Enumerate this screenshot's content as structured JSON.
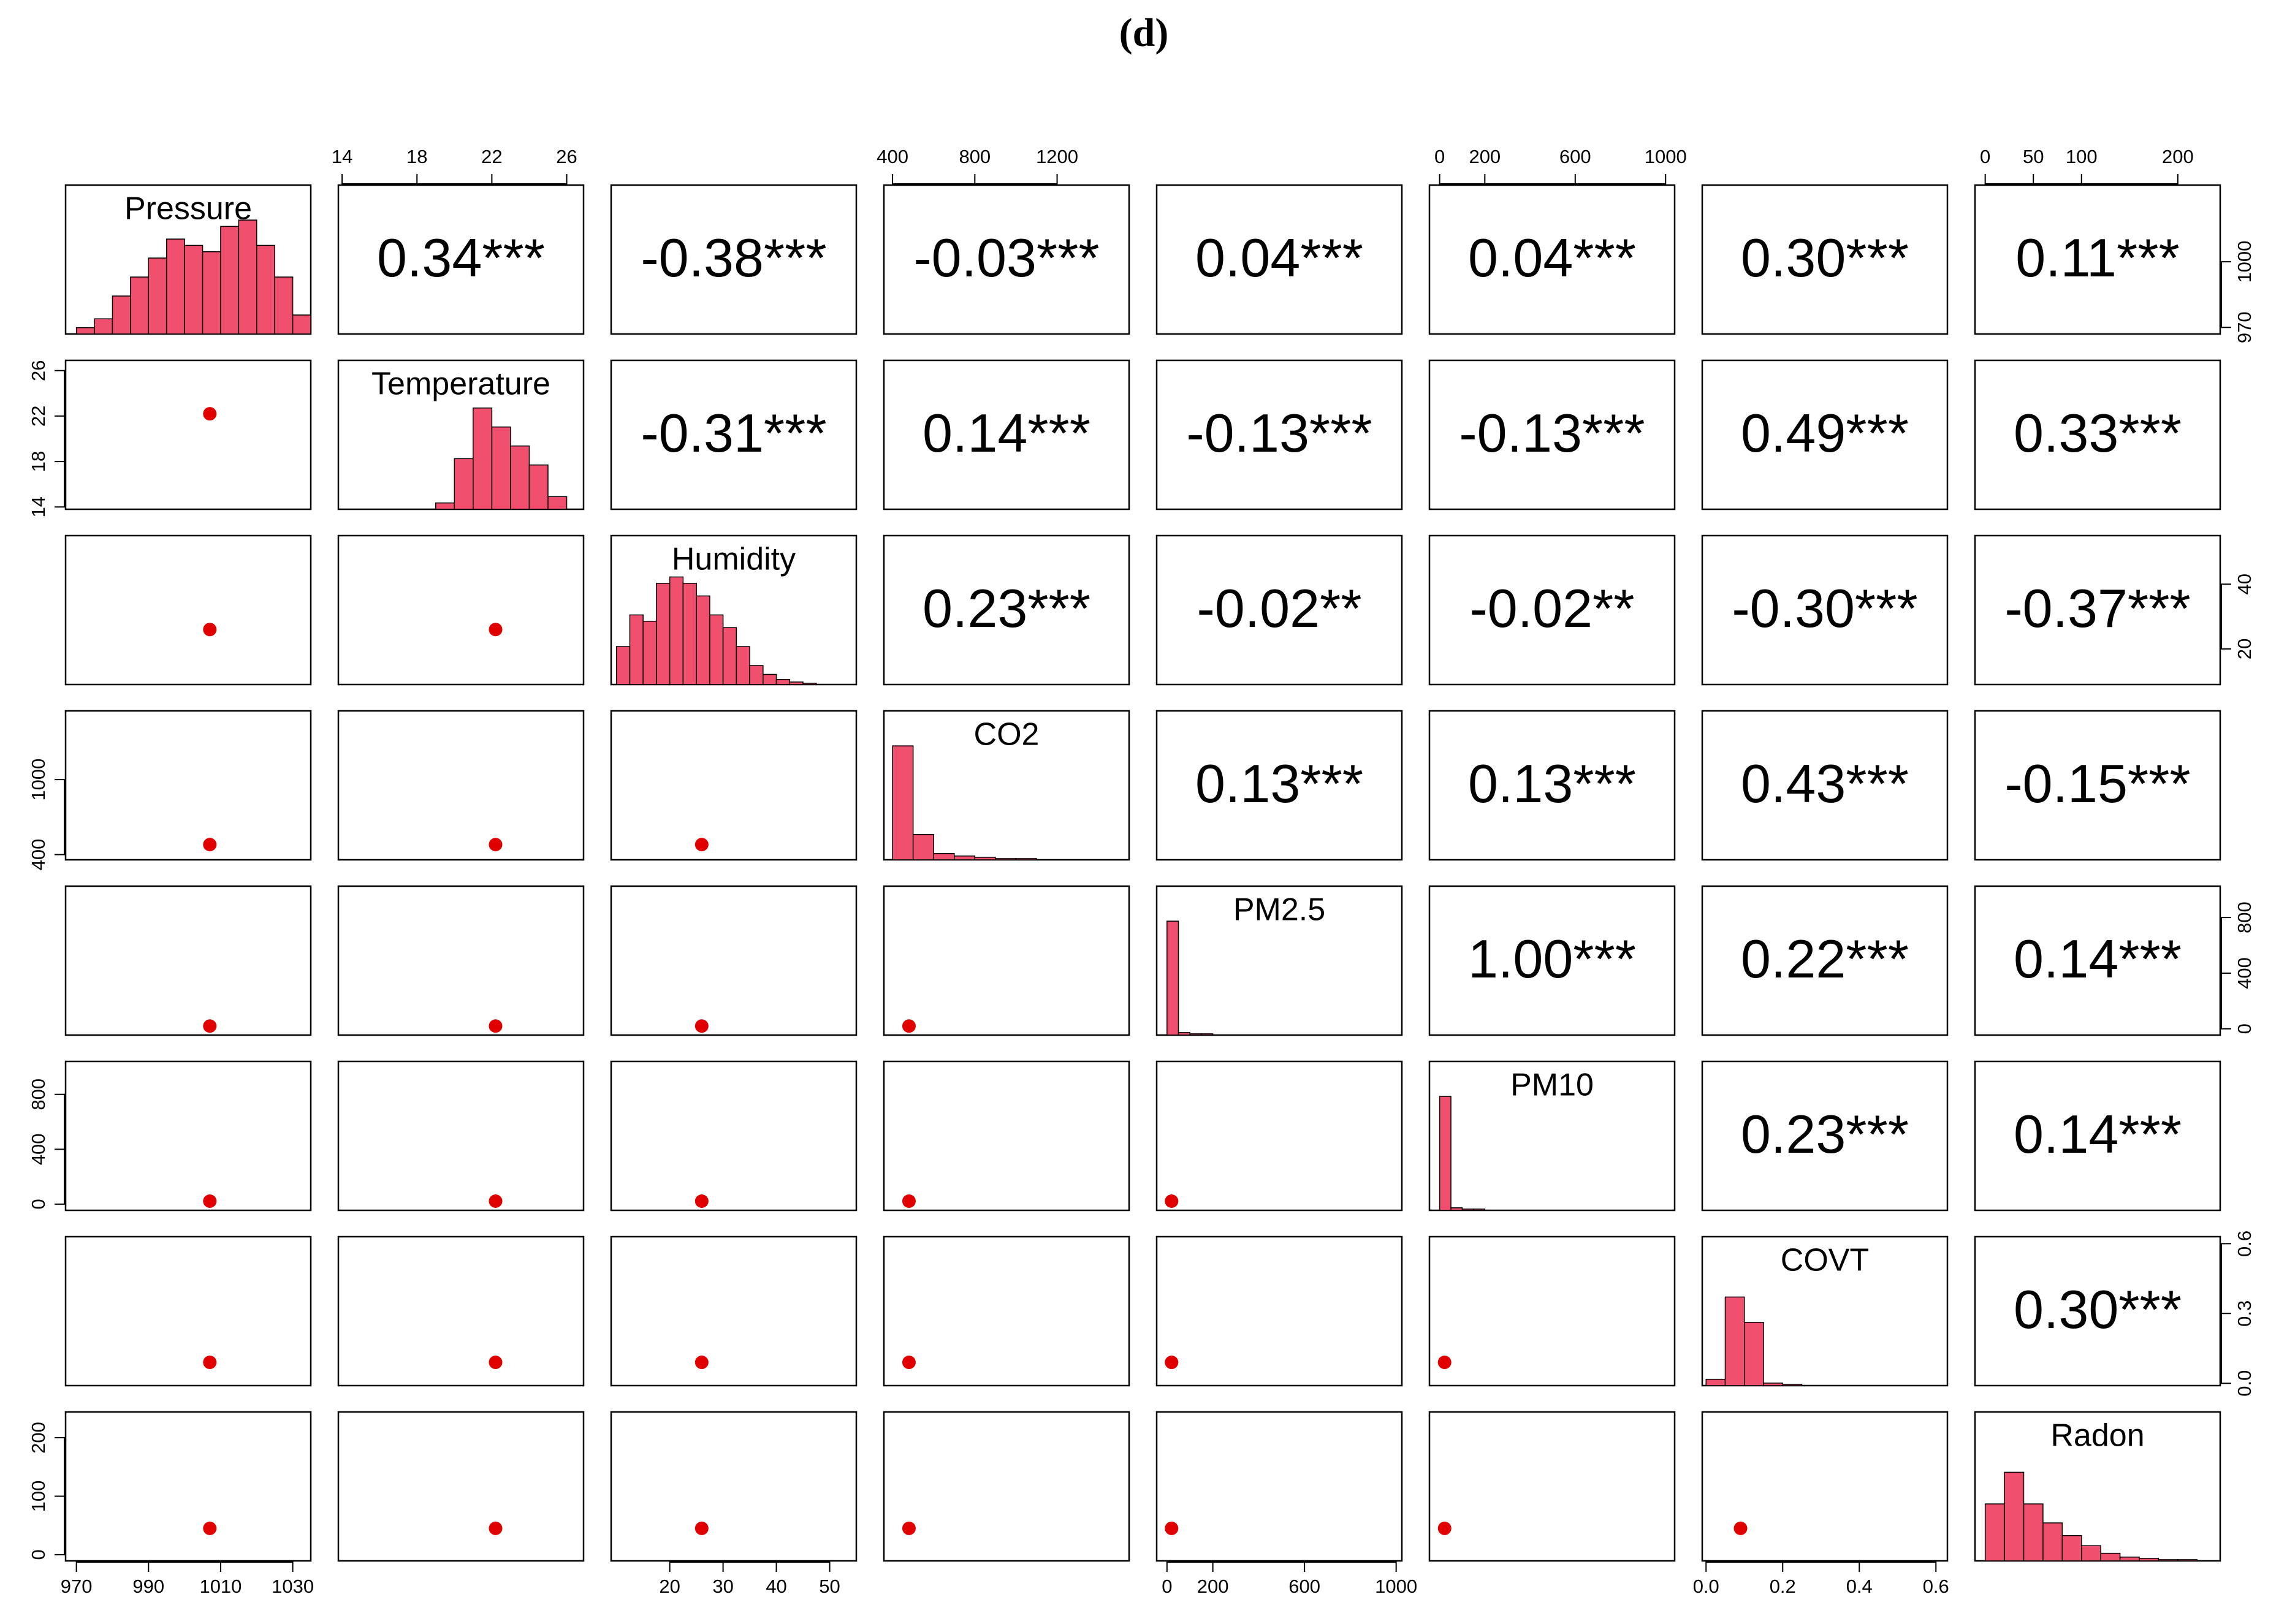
{
  "chart_data": {
    "type": "pairs",
    "title": "(d)",
    "variables": [
      {
        "name": "Pressure",
        "lim": [
          967,
          1035
        ],
        "ticks": [
          970,
          990,
          1010,
          1030
        ],
        "side_ticks": [
          970,
          1000
        ],
        "mean": 1007,
        "hist": {
          "bins": [
            970,
            975,
            980,
            985,
            990,
            995,
            1000,
            1005,
            1010,
            1015,
            1020,
            1025,
            1030,
            1035
          ],
          "counts": [
            0.05,
            0.12,
            0.3,
            0.45,
            0.6,
            0.75,
            0.7,
            0.65,
            0.85,
            0.9,
            0.7,
            0.45,
            0.15
          ]
        }
      },
      {
        "name": "Temperature",
        "lim": [
          13.8,
          26.9
        ],
        "ticks": [
          14,
          18,
          22,
          26
        ],
        "side_ticks": [
          14,
          18,
          22,
          26
        ],
        "mean": 22.2,
        "hist": {
          "bins": [
            14,
            15,
            16,
            17,
            18,
            19,
            20,
            21,
            22,
            23,
            24,
            25,
            26
          ],
          "counts": [
            0,
            0,
            0,
            0,
            0,
            0.05,
            0.4,
            0.8,
            0.65,
            0.5,
            0.35,
            0.1
          ]
        }
      },
      {
        "name": "Humidity",
        "lim": [
          9,
          55
        ],
        "ticks": [
          20,
          30,
          40,
          50
        ],
        "side_ticks": [
          20,
          40
        ],
        "mean": 26,
        "hist": {
          "bins": [
            10,
            12.5,
            15,
            17.5,
            20,
            22.5,
            25,
            27.5,
            30,
            32.5,
            35,
            37.5,
            40,
            42.5,
            45,
            47.5,
            50
          ],
          "counts": [
            0.3,
            0.55,
            0.5,
            0.8,
            0.85,
            0.8,
            0.7,
            0.55,
            0.45,
            0.3,
            0.15,
            0.08,
            0.04,
            0.02,
            0.01,
            0
          ]
        }
      },
      {
        "name": "CO2",
        "lim": [
          358,
          1550
        ],
        "ticks": [
          400,
          800,
          1200
        ],
        "side_ticks": [
          400,
          1000
        ],
        "mean": 480,
        "hist": {
          "bins": [
            400,
            500,
            600,
            700,
            800,
            900,
            1000,
            1100,
            1200,
            1300,
            1400,
            1500
          ],
          "counts": [
            0.9,
            0.2,
            0.05,
            0.03,
            0.02,
            0.01,
            0.01,
            0,
            0,
            0,
            0
          ]
        }
      },
      {
        "name": "PM2.5",
        "lim": [
          -45,
          1025
        ],
        "ticks": [
          0,
          200,
          600,
          1000
        ],
        "side_ticks": [
          0,
          400,
          800
        ],
        "mean": 20,
        "hist": {
          "bins": [
            0,
            50,
            100,
            150,
            200,
            250,
            300,
            400,
            500,
            600,
            800,
            1000
          ],
          "counts": [
            0.9,
            0.02,
            0.01,
            0.01,
            0,
            0,
            0,
            0,
            0,
            0,
            0
          ]
        }
      },
      {
        "name": "PM10",
        "lim": [
          -45,
          1040
        ],
        "ticks": [
          0,
          200,
          600,
          1000
        ],
        "side_ticks": [
          0,
          400,
          800
        ],
        "mean": 22,
        "hist": {
          "bins": [
            0,
            50,
            100,
            150,
            200,
            250,
            300,
            400,
            500,
            600,
            800,
            1000
          ],
          "counts": [
            0.9,
            0.02,
            0.01,
            0.01,
            0,
            0,
            0,
            0,
            0,
            0,
            0
          ]
        }
      },
      {
        "name": "COVT",
        "lim": [
          -0.01,
          0.63
        ],
        "ticks": [
          {
            "value": 0,
            "label": "0.0"
          },
          0.2,
          0.4,
          0.6
        ],
        "side_ticks": [
          {
            "value": 0,
            "label": "0.0"
          },
          0.3,
          0.6
        ],
        "mean": 0.09,
        "hist": {
          "bins": [
            0,
            0.05,
            0.1,
            0.15,
            0.2,
            0.25,
            0.3,
            0.4,
            0.5,
            0.6
          ],
          "counts": [
            0.05,
            0.7,
            0.5,
            0.02,
            0.01,
            0,
            0,
            0,
            0
          ]
        }
      },
      {
        "name": "Radon",
        "lim": [
          -10.6,
          244
        ],
        "ticks": [
          0,
          50,
          100,
          200
        ],
        "side_ticks": [
          0,
          100,
          200
        ],
        "mean": 45,
        "hist": {
          "bins": [
            0,
            20,
            40,
            60,
            80,
            100,
            120,
            140,
            160,
            180,
            200,
            220,
            240
          ],
          "counts": [
            0.45,
            0.7,
            0.45,
            0.3,
            0.2,
            0.12,
            0.06,
            0.03,
            0.02,
            0.01,
            0.01,
            0
          ]
        }
      }
    ],
    "correlations": [
      [
        "0.34***",
        "-0.38***",
        "-0.03***",
        "0.04***",
        "0.04***",
        "0.30***",
        "0.11***"
      ],
      [
        "-0.31***",
        "0.14***",
        "-0.13***",
        "-0.13***",
        "0.49***",
        "0.33***"
      ],
      [
        "0.23***",
        "-0.02**",
        "-0.02**",
        "-0.30***",
        "-0.37***"
      ],
      [
        "0.13***",
        "0.13***",
        "0.43***",
        "-0.15***"
      ],
      [
        "1.00***",
        "0.22***",
        "0.14***"
      ],
      [
        "0.23***",
        "0.14***"
      ],
      [
        "0.30***"
      ]
    ],
    "hist_color": "#f0506e"
  }
}
